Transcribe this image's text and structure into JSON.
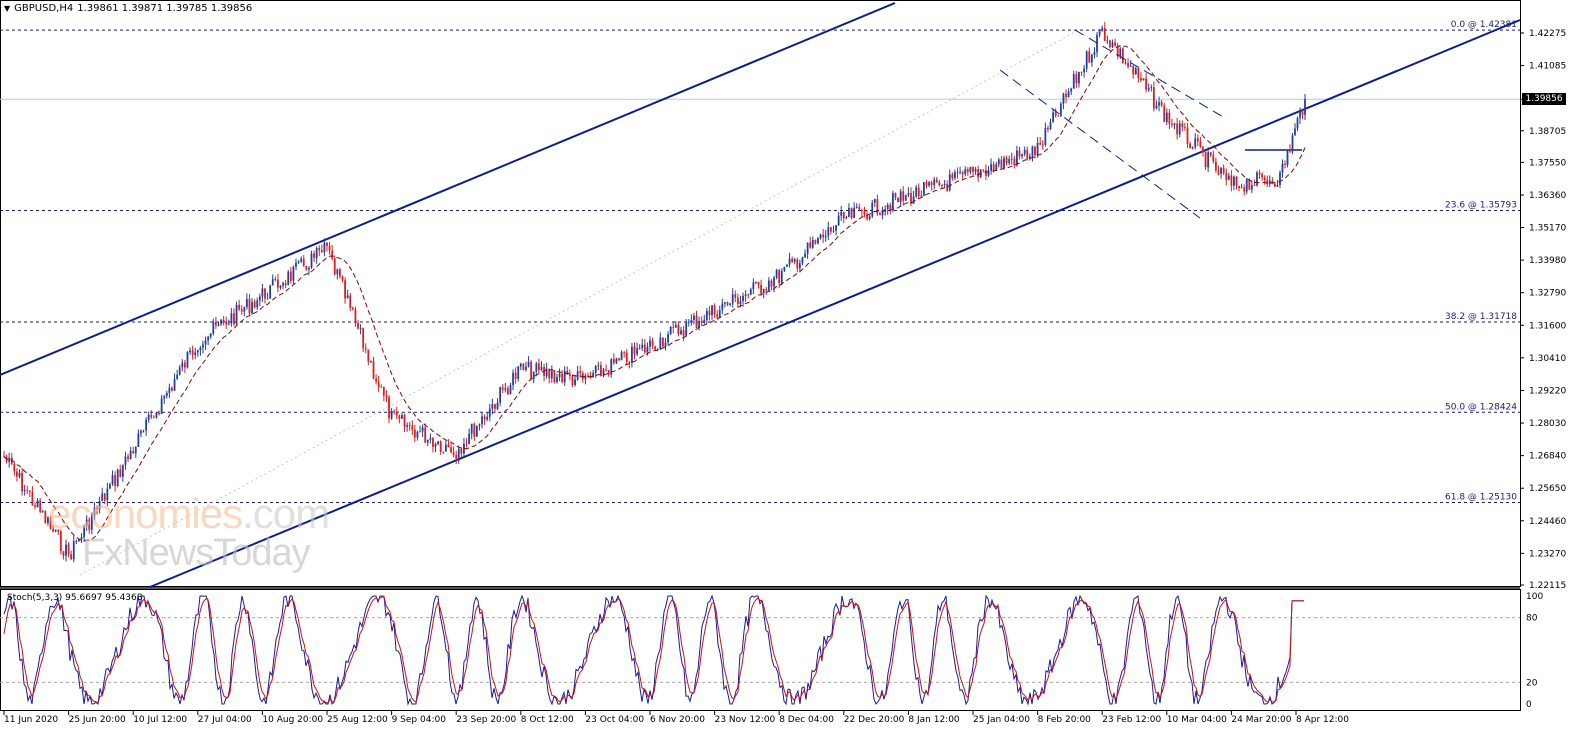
{
  "header": {
    "symbol": "GBPUSD,H4",
    "ohlc": "1.39861 1.39871 1.39785 1.39856",
    "menu_icon": "triangle-down-icon"
  },
  "price_badge": "1.39856",
  "price_axis": [
    "1.42275",
    "1.41085",
    "1.39856",
    "1.38705",
    "1.37550",
    "1.36360",
    "1.35170",
    "1.33980",
    "1.32790",
    "1.31600",
    "1.30410",
    "1.29220",
    "1.28030",
    "1.26840",
    "1.25650",
    "1.24460",
    "1.23270",
    "1.22115"
  ],
  "time_axis": [
    "11 Jun 2020",
    "25 Jun 20:00",
    "10 Jul 12:00",
    "27 Jul 04:00",
    "10 Aug 20:00",
    "25 Aug 12:00",
    "9 Sep 04:00",
    "23 Sep 20:00",
    "8 Oct 12:00",
    "23 Oct 04:00",
    "6 Nov 20:00",
    "23 Nov 12:00",
    "8 Dec 04:00",
    "22 Dec 20:00",
    "8 Jan 12:00",
    "25 Jan 04:00",
    "8 Feb 20:00",
    "23 Feb 12:00",
    "10 Mar 04:00",
    "24 Mar 20:00",
    "8 Apr 12:00"
  ],
  "fib_levels": [
    {
      "label": "0.0 @ 1.42381",
      "price": 1.42381
    },
    {
      "label": "23.6 @ 1.35793",
      "price": 1.35793
    },
    {
      "label": "38.2 @ 1.31718",
      "price": 1.31718
    },
    {
      "label": "50.0 @ 1.28424",
      "price": 1.28424
    },
    {
      "label": "61.8 @ 1.25130",
      "price": 1.2513
    }
  ],
  "stochastic": {
    "label": "Stoch(5,3,3) 95.6697 95.4368",
    "axis": [
      "100",
      "80",
      "20",
      "0"
    ],
    "levels": [
      80,
      20
    ]
  },
  "watermark": {
    "line1": "economies",
    "line1_suffix": ".com",
    "line2": "FxNewsToday"
  },
  "colors": {
    "bull": "#1f3fa8",
    "bear": "#e31b1b",
    "channel": "#0b1f8a",
    "ma": "#8b0000",
    "grid_dash": "#1a1a80",
    "current_price": "#9fd6e8"
  },
  "chart_data": {
    "type": "candlestick",
    "title": "GBPUSD,H4",
    "ylim": [
      1.2155,
      1.43
    ],
    "current_price": 1.39856,
    "fibonacci": [
      {
        "level": "0.0",
        "price": 1.42381
      },
      {
        "level": "23.6",
        "price": 1.35793
      },
      {
        "level": "38.2",
        "price": 1.31718
      },
      {
        "level": "50.0",
        "price": 1.28424
      },
      {
        "level": "61.8",
        "price": 1.2513
      }
    ],
    "approx_swing_points": [
      {
        "date": "11 Jun 2020",
        "price": 1.268
      },
      {
        "date": "25 Jun 20:00",
        "price": 1.232
      },
      {
        "date": "27 Jul 04:00",
        "price": 1.31
      },
      {
        "date": "25 Aug 12:00",
        "price": 1.344
      },
      {
        "date": "9 Sep 04:00",
        "price": 1.282
      },
      {
        "date": "23 Sep 20:00",
        "price": 1.27
      },
      {
        "date": "8 Oct 12:00",
        "price": 1.3
      },
      {
        "date": "23 Oct 04:00",
        "price": 1.296
      },
      {
        "date": "8 Dec 04:00",
        "price": 1.334
      },
      {
        "date": "22 Dec 20:00",
        "price": 1.355
      },
      {
        "date": "8 Jan 12:00",
        "price": 1.363
      },
      {
        "date": "8 Feb 20:00",
        "price": 1.38
      },
      {
        "date": "23 Feb 12:00",
        "price": 1.4238
      },
      {
        "date": "10 Mar 04:00",
        "price": 1.392
      },
      {
        "date": "24 Mar 20:00",
        "price": 1.367
      },
      {
        "date": "8 Apr 12:00",
        "price": 1.37
      },
      {
        "date": "8 Apr 12:00",
        "price": 1.39856
      }
    ],
    "stochastic": {
      "k": 95.6697,
      "d": 95.4368,
      "params": "5,3,3",
      "ylim": [
        0,
        100
      ],
      "levels": [
        20,
        80
      ]
    }
  }
}
